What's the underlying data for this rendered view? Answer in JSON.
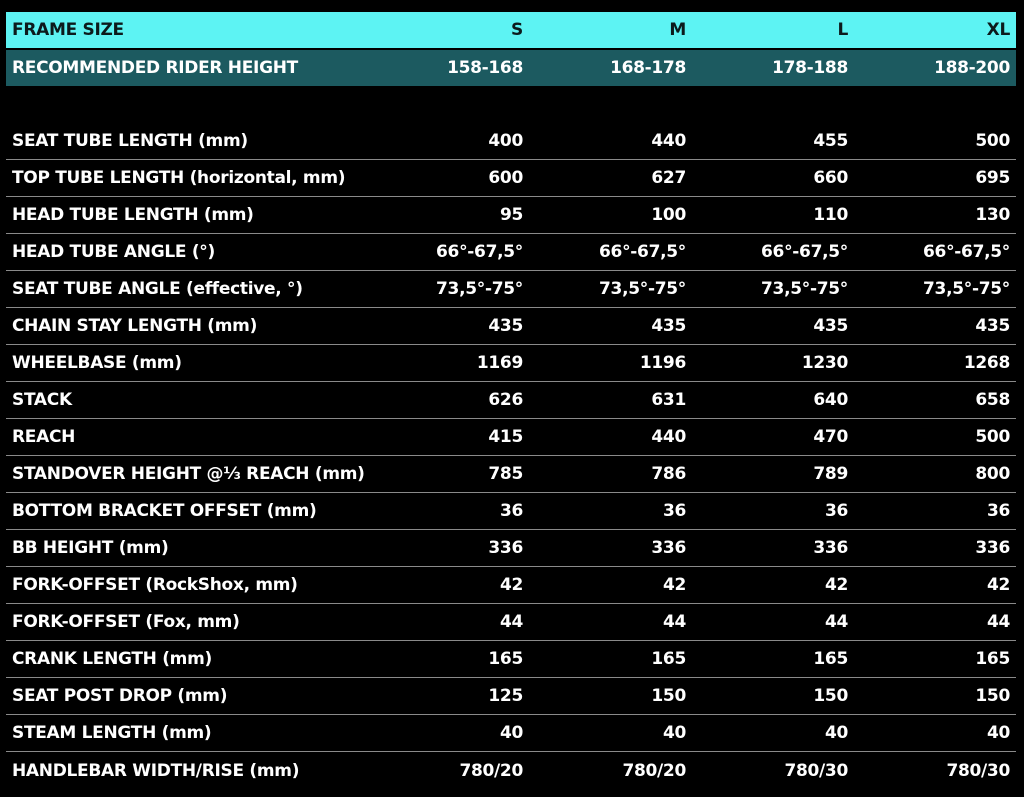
{
  "header": {
    "label": "FRAME SIZE",
    "sizes": [
      "S",
      "M",
      "L",
      "XL"
    ]
  },
  "rider_height": {
    "label": "RECOMMENDED RIDER HEIGHT",
    "values": [
      "158-168",
      "168-178",
      "178-188",
      "188-200"
    ]
  },
  "table": {
    "rows": [
      [
        "SEAT TUBE LENGTH (mm)",
        "400",
        "440",
        "455",
        "500"
      ],
      [
        "TOP TUBE LENGTH (horizontal, mm)",
        "600",
        "627",
        "660",
        "695"
      ],
      [
        "HEAD TUBE LENGTH (mm)",
        "95",
        "100",
        "110",
        "130"
      ],
      [
        "HEAD TUBE ANGLE (°)",
        "66°-67,5°",
        "66°-67,5°",
        "66°-67,5°",
        "66°-67,5°"
      ],
      [
        "SEAT TUBE ANGLE (effective, °)",
        "73,5°-75°",
        "73,5°-75°",
        "73,5°-75°",
        "73,5°-75°"
      ],
      [
        "CHAIN STAY LENGTH (mm)",
        "435",
        "435",
        "435",
        "435"
      ],
      [
        "WHEELBASE (mm)",
        "1169",
        "1196",
        "1230",
        "1268"
      ],
      [
        "STACK",
        "626",
        "631",
        "640",
        "658"
      ],
      [
        "REACH",
        "415",
        "440",
        "470",
        "500"
      ],
      [
        "STANDOVER HEIGHT @⅓ REACH (mm)",
        "785",
        "786",
        "789",
        "800"
      ],
      [
        "BOTTOM BRACKET OFFSET (mm)",
        "36",
        "36",
        "36",
        "36"
      ],
      [
        "BB HEIGHT (mm)",
        "336",
        "336",
        "336",
        "336"
      ],
      [
        "FORK-OFFSET (RockShox, mm)",
        "42",
        "42",
        "42",
        "42"
      ],
      [
        "FORK-OFFSET (Fox, mm)",
        "44",
        "44",
        "44",
        "44"
      ],
      [
        "CRANK LENGTH (mm)",
        "165",
        "165",
        "165",
        "165"
      ],
      [
        "SEAT POST DROP (mm)",
        "125",
        "150",
        "150",
        "150"
      ],
      [
        "STEAM LENGTH (mm)",
        "40",
        "40",
        "40",
        "40"
      ],
      [
        "HANDLEBAR WIDTH/RISE (mm)",
        "780/20",
        "780/20",
        "780/30",
        "780/30"
      ]
    ]
  }
}
